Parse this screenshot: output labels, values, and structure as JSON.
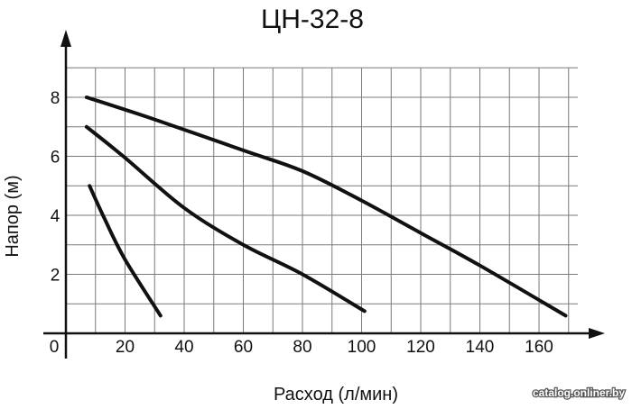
{
  "chart_data": {
    "type": "line",
    "title": "ЦН-32-8",
    "xlabel": "Расход (л/мин)",
    "ylabel": "Напор (м)",
    "xlim": [
      0,
      180
    ],
    "ylim": [
      0,
      9
    ],
    "x_ticks": [
      "0",
      "20",
      "40",
      "60",
      "80",
      "100",
      "120",
      "140",
      "160"
    ],
    "y_ticks": [
      "2",
      "4",
      "6",
      "8"
    ],
    "grid": true,
    "series": [
      {
        "points": [
          [
            7,
            8.0
          ],
          [
            30,
            7.25
          ],
          [
            60,
            6.2
          ],
          [
            80,
            5.5
          ],
          [
            100,
            4.5
          ],
          [
            120,
            3.4
          ],
          [
            140,
            2.3
          ],
          [
            169,
            0.6
          ]
        ]
      },
      {
        "points": [
          [
            7,
            7.0
          ],
          [
            20,
            5.95
          ],
          [
            40,
            4.25
          ],
          [
            60,
            3.0
          ],
          [
            80,
            2.0
          ],
          [
            101,
            0.75
          ]
        ]
      },
      {
        "points": [
          [
            8,
            5.0
          ],
          [
            13,
            3.9
          ],
          [
            20,
            2.5
          ],
          [
            32,
            0.6
          ]
        ]
      }
    ],
    "color": "#111111"
  },
  "watermark": "catalog.onliner.by"
}
